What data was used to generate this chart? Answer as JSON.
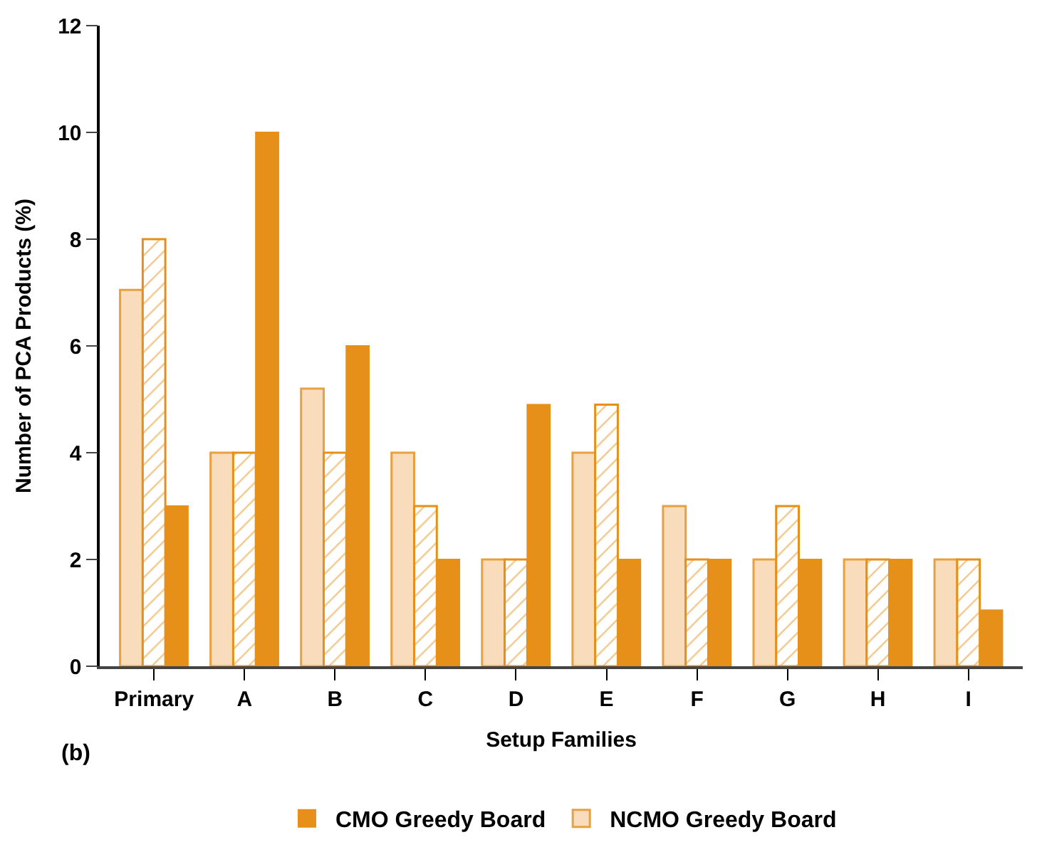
{
  "chart_data": {
    "type": "bar",
    "xlabel": "Setup Families",
    "ylabel": "Number of PCA Products (%)",
    "categories": [
      "Primary",
      "A",
      "B",
      "C",
      "D",
      "E",
      "F",
      "G",
      "H",
      "I"
    ],
    "series": [
      {
        "name": "NCMO Greedy Board",
        "color": "#f8dcbc",
        "values": [
          7.05,
          4,
          5.2,
          4,
          2,
          4,
          3,
          2,
          2,
          2
        ]
      },
      {
        "color": "#e69019",
        "values": [
          8,
          4,
          4,
          3,
          2,
          4.9,
          2,
          3,
          2,
          2
        ]
      },
      {
        "name": "CMO Greedy Board",
        "color": "#e69019",
        "values": [
          3,
          10,
          6,
          2,
          4.9,
          2,
          2,
          2,
          2,
          1.05
        ]
      }
    ],
    "ylim": [
      0,
      12
    ],
    "yticks": [
      0,
      2,
      4,
      6,
      8,
      10,
      12
    ],
    "legend": "bottom",
    "annotations": [
      "(b)"
    ]
  }
}
